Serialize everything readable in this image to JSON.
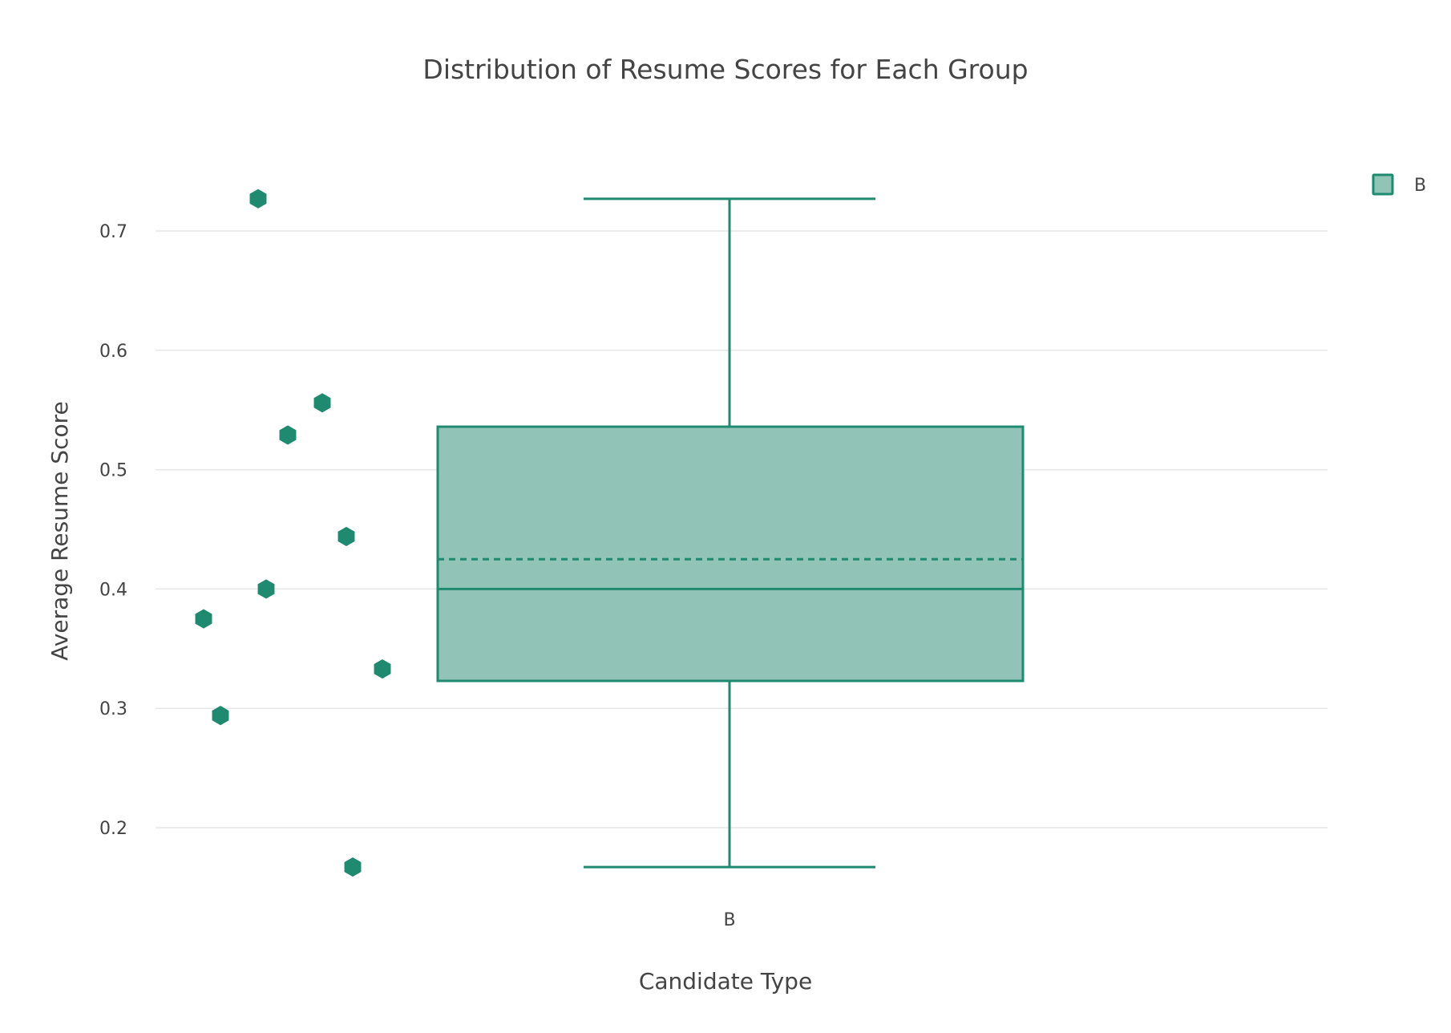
{
  "chart_data": {
    "type": "box",
    "title": "Distribution of Resume Scores for Each Group",
    "xlabel": "Candidate Type",
    "ylabel": "Average Resume Score",
    "categories": [
      "B"
    ],
    "ylim": [
      0.135,
      0.76
    ],
    "yticks": [
      0.2,
      0.3,
      0.4,
      0.5,
      0.6,
      0.7
    ],
    "ytick_labels": [
      "0.2",
      "0.3",
      "0.4",
      "0.5",
      "0.6",
      "0.7"
    ],
    "grid": true,
    "legend": {
      "position": "top-right",
      "entries": [
        "B"
      ]
    },
    "series": [
      {
        "name": "B",
        "category": "B",
        "stats": {
          "min": 0.167,
          "q1": 0.323,
          "median": 0.4,
          "mean": 0.425,
          "q3": 0.536,
          "max": 0.727
        },
        "points": [
          0.727,
          0.556,
          0.529,
          0.444,
          0.4,
          0.375,
          0.333,
          0.294,
          0.167
        ]
      }
    ],
    "colors": {
      "line": "#1f8a70",
      "fill": "#91c4b7",
      "marker": "#1f8a70"
    }
  }
}
